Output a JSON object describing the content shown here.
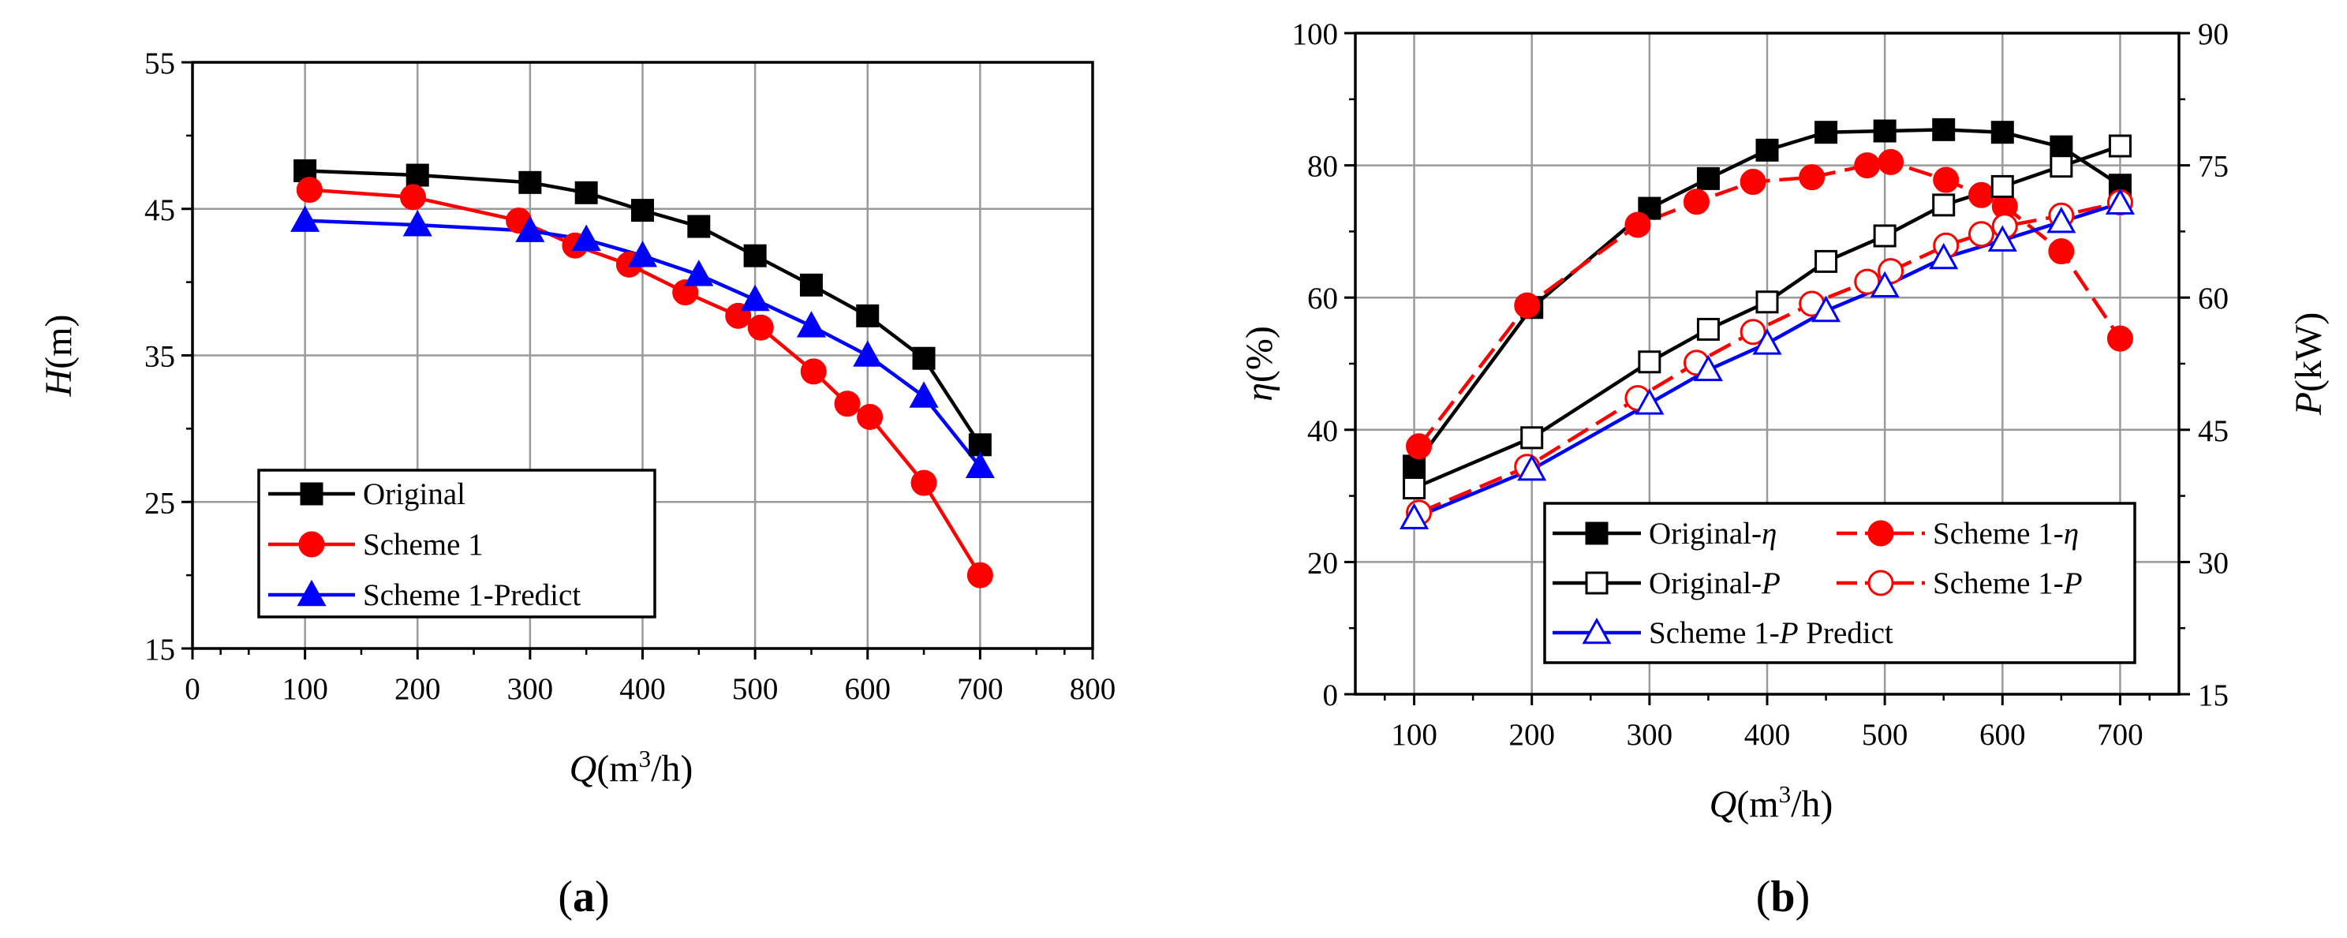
{
  "chart_data": [
    {
      "type": "line",
      "panel_label": "(a)",
      "panel_label_parts": [
        "(",
        "a",
        ")"
      ],
      "title": "",
      "xlabel": "Q(m3/h)",
      "xlabel_parts": {
        "var": "Q",
        "open": "(m",
        "sup": "3",
        "close": "/h)"
      },
      "ylabel": "H(m)",
      "ylabel_parts": {
        "var": "H",
        "unit": "(m)"
      },
      "xlim": [
        0,
        800
      ],
      "ylim": [
        15,
        55
      ],
      "xticks": [
        0,
        100,
        200,
        300,
        400,
        500,
        600,
        700,
        800
      ],
      "yticks": [
        15,
        25,
        35,
        45,
        55
      ],
      "grid": true,
      "legend_position": "bottom-left",
      "series": [
        {
          "name": "Original",
          "color": "#000000",
          "marker": "square",
          "filled": true,
          "dashed": false,
          "x": [
            100,
            200,
            300,
            350,
            400,
            450,
            500,
            550,
            600,
            650,
            700
          ],
          "y": [
            47.6,
            47.3,
            46.8,
            46.1,
            44.9,
            43.8,
            41.8,
            39.8,
            37.7,
            34.8,
            28.9
          ]
        },
        {
          "name": "Scheme 1",
          "color": "#ff0000",
          "marker": "circle",
          "filled": true,
          "dashed": false,
          "x": [
            104,
            196,
            290,
            340,
            388,
            438,
            485,
            505,
            552,
            582,
            602,
            650,
            700
          ],
          "y": [
            46.3,
            45.8,
            44.2,
            42.5,
            41.2,
            39.3,
            37.7,
            36.9,
            33.9,
            31.7,
            30.8,
            26.3,
            20.0
          ]
        },
        {
          "name": "Scheme 1-Predict",
          "color": "#0000ff",
          "marker": "triangle",
          "filled": true,
          "dashed": false,
          "x": [
            100,
            200,
            300,
            350,
            400,
            450,
            500,
            550,
            600,
            650,
            700
          ],
          "y": [
            44.2,
            43.9,
            43.5,
            42.9,
            41.8,
            40.5,
            38.8,
            37.0,
            35.0,
            32.2,
            27.4
          ]
        }
      ]
    },
    {
      "type": "line",
      "panel_label": "(b)",
      "panel_label_parts": [
        "(",
        "b",
        ")"
      ],
      "title": "",
      "xlabel": "Q(m3/h)",
      "xlabel_parts": {
        "var": "Q",
        "open": "(m",
        "sup": "3",
        "close": "/h)"
      },
      "ylabel": "η(%)",
      "ylabel_parts": {
        "var": "η",
        "unit": "(%)"
      },
      "y2label": "P(kW)",
      "y2label_parts": {
        "var": "P",
        "unit": "(kW)"
      },
      "xlim": [
        50,
        750
      ],
      "ylim": [
        0,
        100
      ],
      "y2lim": [
        15,
        90
      ],
      "xticks": [
        100,
        200,
        300,
        400,
        500,
        600,
        700
      ],
      "yticks": [
        0,
        20,
        40,
        60,
        80,
        100
      ],
      "y2ticks": [
        15,
        30,
        45,
        60,
        75,
        90
      ],
      "grid": true,
      "legend_position": "bottom-center",
      "series": [
        {
          "name": "Original-η",
          "name_parts": {
            "base": "Original-",
            "var": "η",
            "rest": ""
          },
          "axis": "left",
          "color": "#000000",
          "marker": "square",
          "filled": true,
          "dashed": false,
          "x": [
            100,
            200,
            300,
            350,
            400,
            450,
            500,
            550,
            600,
            650,
            700
          ],
          "y": [
            34.5,
            58.5,
            73.5,
            78.0,
            82.3,
            85.0,
            85.2,
            85.4,
            85.0,
            82.8,
            77.0
          ]
        },
        {
          "name": "Scheme 1-η",
          "name_parts": {
            "base": "Scheme 1-",
            "var": "η",
            "rest": ""
          },
          "axis": "left",
          "color": "#ff0000",
          "marker": "circle",
          "filled": true,
          "dashed": true,
          "x": [
            104,
            196,
            290,
            340,
            388,
            438,
            485,
            505,
            552,
            582,
            602,
            650,
            700
          ],
          "y": [
            37.5,
            58.8,
            71.0,
            74.5,
            77.5,
            78.2,
            80.0,
            80.5,
            77.8,
            75.5,
            73.8,
            67.0,
            53.8
          ]
        },
        {
          "name": "Original-P",
          "name_parts": {
            "base": "Original-",
            "var": "P",
            "rest": ""
          },
          "axis": "right",
          "color": "#000000",
          "marker": "square",
          "filled": false,
          "dashed": false,
          "x": [
            100,
            200,
            300,
            350,
            400,
            450,
            500,
            550,
            600,
            650,
            700
          ],
          "y": [
            38.4,
            44.1,
            52.7,
            56.4,
            59.5,
            64.1,
            67.0,
            70.5,
            72.6,
            74.9,
            77.2
          ]
        },
        {
          "name": "Scheme 1-P",
          "name_parts": {
            "base": "Scheme 1-",
            "var": "P",
            "rest": ""
          },
          "axis": "right",
          "color": "#ff0000",
          "marker": "circle",
          "filled": false,
          "dashed": true,
          "x": [
            104,
            196,
            290,
            340,
            388,
            438,
            485,
            505,
            552,
            582,
            602,
            650,
            700
          ],
          "y": [
            35.6,
            40.8,
            48.6,
            52.6,
            56.1,
            59.3,
            61.8,
            63.0,
            65.9,
            67.2,
            68.1,
            69.3,
            70.8
          ]
        },
        {
          "name": "Scheme 1-P Predict",
          "name_parts": {
            "base": "Scheme 1-",
            "var": "P",
            "rest": " Predict"
          },
          "axis": "right",
          "color": "#0000ff",
          "marker": "triangle",
          "filled": false,
          "dashed": false,
          "x": [
            100,
            200,
            300,
            350,
            400,
            450,
            500,
            550,
            600,
            650,
            700
          ],
          "y": [
            35.0,
            40.5,
            48.0,
            51.8,
            54.8,
            58.5,
            61.3,
            64.5,
            66.5,
            68.6,
            70.7
          ]
        }
      ]
    }
  ]
}
